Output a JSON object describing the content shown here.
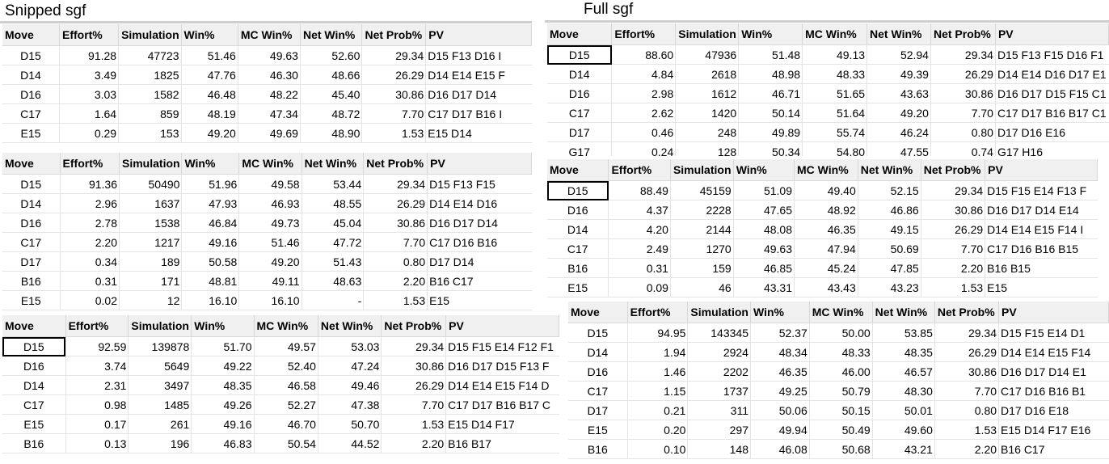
{
  "left_title": "Snipped sgf",
  "right_title": "Full sgf",
  "headers": [
    "Move",
    "Effort%",
    "Simulation",
    "Win%",
    "MC Win%",
    "Net Win%",
    "Net Prob%",
    "PV"
  ],
  "tables": [
    {
      "rows": [
        [
          "D15",
          "91.28",
          "47723",
          "51.46",
          "49.63",
          "52.60",
          "29.34",
          "D15 F13 D16 I"
        ],
        [
          "D14",
          "3.49",
          "1825",
          "47.76",
          "46.30",
          "48.66",
          "26.29",
          "D14 E14 E15 F"
        ],
        [
          "D16",
          "3.03",
          "1582",
          "46.48",
          "48.22",
          "45.40",
          "30.86",
          "D16 D17 D14"
        ],
        [
          "C17",
          "1.64",
          "859",
          "48.19",
          "47.34",
          "48.72",
          "7.70",
          "C17 D17 B16 I"
        ],
        [
          "E15",
          "0.29",
          "153",
          "49.20",
          "49.69",
          "48.90",
          "1.53",
          "E15 D14"
        ]
      ]
    },
    {
      "rows": [
        [
          "D15",
          "91.36",
          "50490",
          "51.96",
          "49.58",
          "53.44",
          "29.34",
          "D15 F13 F15"
        ],
        [
          "D14",
          "2.96",
          "1637",
          "47.93",
          "46.93",
          "48.55",
          "26.29",
          "D14 E14 D16"
        ],
        [
          "D16",
          "2.78",
          "1538",
          "46.84",
          "49.73",
          "45.04",
          "30.86",
          "D16 D17 D14"
        ],
        [
          "C17",
          "2.20",
          "1217",
          "49.16",
          "51.46",
          "47.72",
          "7.70",
          "C17 D16 B16"
        ],
        [
          "D17",
          "0.34",
          "189",
          "50.58",
          "49.20",
          "51.43",
          "0.80",
          "D17 D14"
        ],
        [
          "B16",
          "0.31",
          "171",
          "48.81",
          "49.11",
          "48.63",
          "2.20",
          "B16 C17"
        ],
        [
          "E15",
          "0.02",
          "12",
          "16.10",
          "16.10",
          "-",
          "1.53",
          "E15"
        ]
      ]
    },
    {
      "rows": [
        [
          "D15",
          "92.59",
          "139878",
          "51.70",
          "49.57",
          "53.03",
          "29.34",
          "D15 F15 E14 F12 F1"
        ],
        [
          "D16",
          "3.74",
          "5649",
          "49.22",
          "52.40",
          "47.24",
          "30.86",
          "D16 D17 D15 F13 F"
        ],
        [
          "D14",
          "2.31",
          "3497",
          "48.35",
          "46.58",
          "49.46",
          "26.29",
          "D14 E14 E15 F14 D"
        ],
        [
          "C17",
          "0.98",
          "1485",
          "49.26",
          "52.27",
          "47.38",
          "7.70",
          "C17 D17 B16 B17 C"
        ],
        [
          "E15",
          "0.17",
          "261",
          "49.16",
          "46.70",
          "50.70",
          "1.53",
          "E15 D14 F17"
        ],
        [
          "B16",
          "0.13",
          "196",
          "46.83",
          "50.54",
          "44.52",
          "2.20",
          "B16 B17"
        ]
      ]
    },
    {
      "rows": [
        [
          "D15",
          "88.60",
          "47936",
          "51.48",
          "49.13",
          "52.94",
          "29.34",
          "D15 F13 F15 D16 F1"
        ],
        [
          "D14",
          "4.84",
          "2618",
          "48.98",
          "48.33",
          "49.39",
          "26.29",
          "D14 E14 D16 D17 E1"
        ],
        [
          "D16",
          "2.98",
          "1612",
          "46.71",
          "51.65",
          "43.63",
          "30.86",
          "D16 D17 D15 F15 C1"
        ],
        [
          "C17",
          "2.62",
          "1420",
          "50.14",
          "51.64",
          "49.20",
          "7.70",
          "C17 D17 B16 B17 C1"
        ],
        [
          "D17",
          "0.46",
          "248",
          "49.89",
          "55.74",
          "46.24",
          "0.80",
          "D17 D16 E16"
        ],
        [
          "G17",
          "0.24",
          "128",
          "50.34",
          "54.80",
          "47.55",
          "0.74",
          "G17 H16"
        ]
      ]
    },
    {
      "rows": [
        [
          "D15",
          "88.49",
          "45159",
          "51.09",
          "49.40",
          "52.15",
          "29.34",
          "D15 F15 E14 F13 F"
        ],
        [
          "D16",
          "4.37",
          "2228",
          "47.65",
          "48.92",
          "46.86",
          "30.86",
          "D16 D17 D14 E14"
        ],
        [
          "D14",
          "4.20",
          "2144",
          "48.08",
          "46.35",
          "49.15",
          "26.29",
          "D14 E14 E15 F14 I"
        ],
        [
          "C17",
          "2.49",
          "1270",
          "49.63",
          "47.94",
          "50.69",
          "7.70",
          "C17 D16 B16 B15"
        ],
        [
          "B16",
          "0.31",
          "159",
          "46.85",
          "45.24",
          "47.85",
          "2.20",
          "B16 B15"
        ],
        [
          "E15",
          "0.09",
          "46",
          "43.31",
          "43.43",
          "43.23",
          "1.53",
          "E15"
        ]
      ]
    },
    {
      "rows": [
        [
          "D15",
          "94.95",
          "143345",
          "52.37",
          "50.00",
          "53.85",
          "29.34",
          "D15 F15 E14 D1"
        ],
        [
          "D14",
          "1.94",
          "2924",
          "48.34",
          "48.33",
          "48.35",
          "26.29",
          "D14 E14 E15 F14"
        ],
        [
          "D16",
          "1.46",
          "2202",
          "46.35",
          "46.00",
          "46.57",
          "30.86",
          "D16 D17 D14 E1"
        ],
        [
          "C17",
          "1.15",
          "1737",
          "49.25",
          "50.79",
          "48.30",
          "7.70",
          "C17 D16 B16 B1"
        ],
        [
          "D17",
          "0.21",
          "311",
          "50.06",
          "50.15",
          "50.01",
          "0.80",
          "D17 D16 E18"
        ],
        [
          "E15",
          "0.20",
          "297",
          "49.94",
          "50.49",
          "49.60",
          "1.53",
          "E15 D14 F17 E16"
        ],
        [
          "B16",
          "0.10",
          "148",
          "46.08",
          "50.68",
          "43.21",
          "2.20",
          "B16 C17"
        ]
      ]
    }
  ]
}
